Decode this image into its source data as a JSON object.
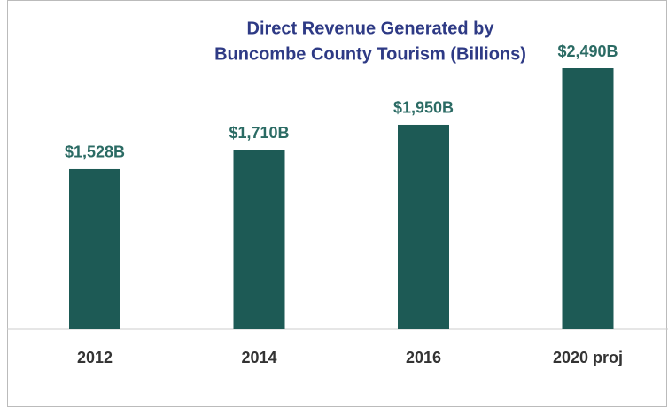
{
  "chart_data": {
    "type": "bar",
    "title": [
      "Direct Revenue Generated by",
      "Buncombe County Tourism (Billions)"
    ],
    "categories": [
      "2012",
      "2014",
      "2016",
      "2020 proj"
    ],
    "values": [
      1528,
      1710,
      1950,
      2490
    ],
    "value_labels": [
      "$1,528B",
      "$1,710B",
      "$1,950B",
      "$2,490B"
    ],
    "color": "#1d5a55"
  }
}
